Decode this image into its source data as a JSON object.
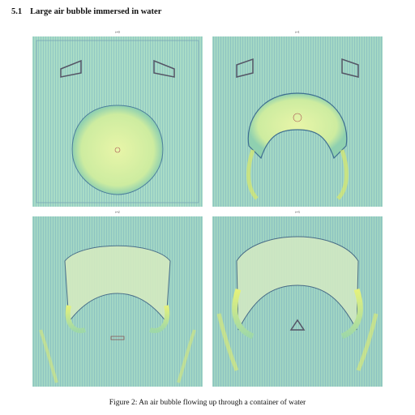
{
  "section": {
    "number": "5.1",
    "title": "Large air bubble immersed in water"
  },
  "figure": {
    "panels": [
      {
        "label": "t=0"
      },
      {
        "label": "t=1"
      },
      {
        "label": "t=2"
      },
      {
        "label": "t=3"
      }
    ],
    "caption": "Figure 2: An air bubble flowing up through a container of water"
  }
}
